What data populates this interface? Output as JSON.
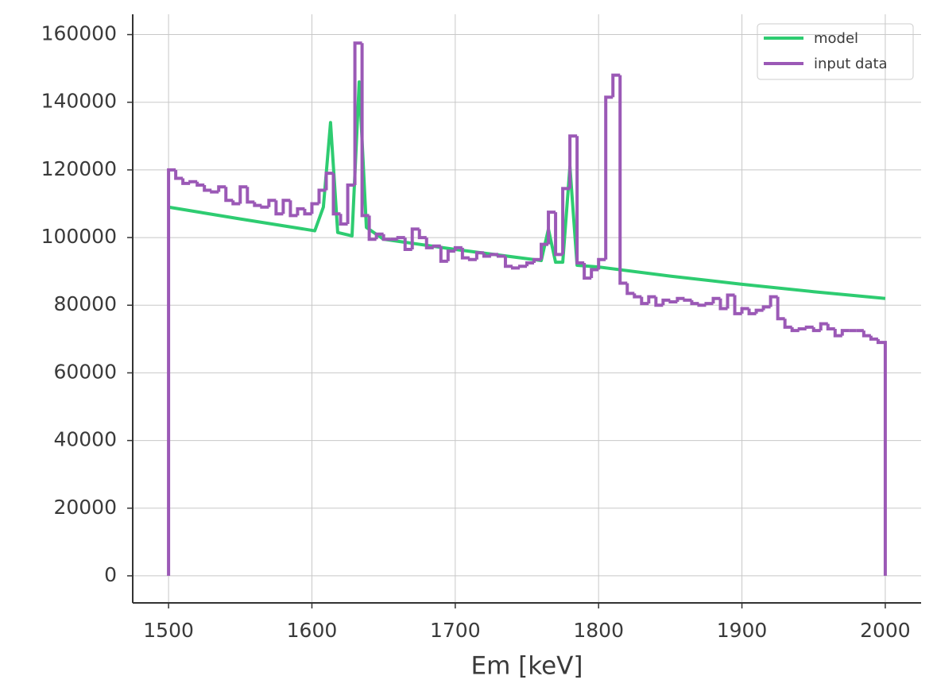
{
  "chart_data": {
    "type": "line",
    "xlabel": "Em [keV]",
    "xlim": [
      1475,
      2025
    ],
    "ylim": [
      -8000,
      166000
    ],
    "xticks": [
      1500,
      1600,
      1700,
      1800,
      1900,
      2000
    ],
    "yticks": [
      0,
      20000,
      40000,
      60000,
      80000,
      100000,
      120000,
      140000,
      160000
    ],
    "grid": true,
    "legend": "upper right",
    "series": [
      {
        "name": "model",
        "color": "#2ecc71",
        "x": [
          1500,
          1550,
          1602,
          1608,
          1613,
          1618,
          1628,
          1633,
          1638,
          1650,
          1700,
          1760,
          1765,
          1770,
          1775,
          1780,
          1785,
          1800,
          1850,
          1900,
          1950,
          2000
        ],
        "values": [
          109000,
          105500,
          102000,
          109000,
          134000,
          101500,
          100500,
          146000,
          103000,
          99500,
          96500,
          93200,
          102500,
          92700,
          92700,
          121000,
          91800,
          91300,
          88600,
          86200,
          84000,
          82000
        ]
      },
      {
        "name": "input data",
        "color": "#9b59b6",
        "drawstyle": "steps",
        "bins": [
          1500,
          1505,
          1510,
          1515,
          1520,
          1525,
          1530,
          1535,
          1540,
          1545,
          1550,
          1555,
          1560,
          1565,
          1570,
          1575,
          1580,
          1585,
          1590,
          1595,
          1600,
          1605,
          1610,
          1615,
          1620,
          1625,
          1630,
          1635,
          1640,
          1645,
          1650,
          1655,
          1660,
          1665,
          1670,
          1675,
          1680,
          1685,
          1690,
          1695,
          1700,
          1705,
          1710,
          1715,
          1720,
          1725,
          1730,
          1735,
          1740,
          1745,
          1750,
          1755,
          1760,
          1765,
          1770,
          1775,
          1780,
          1785,
          1790,
          1795,
          1800,
          1805,
          1810,
          1815,
          1820,
          1825,
          1830,
          1835,
          1840,
          1845,
          1850,
          1855,
          1860,
          1865,
          1870,
          1875,
          1880,
          1885,
          1890,
          1895,
          1900,
          1905,
          1910,
          1915,
          1920,
          1925,
          1930,
          1935,
          1940,
          1945,
          1950,
          1955,
          1960,
          1965,
          1970,
          1975,
          1980,
          1985,
          1990,
          1995,
          2000
        ],
        "values": [
          120000,
          117500,
          116000,
          116500,
          115500,
          114000,
          113500,
          115000,
          111000,
          110000,
          115000,
          110500,
          109500,
          109000,
          111000,
          107000,
          111000,
          106500,
          108500,
          107000,
          110000,
          114000,
          119000,
          107000,
          104000,
          115500,
          157500,
          106500,
          99500,
          101000,
          99500,
          99500,
          100000,
          96500,
          102500,
          100000,
          97000,
          97500,
          93000,
          96000,
          97000,
          94000,
          93500,
          95500,
          94500,
          95000,
          94500,
          91500,
          91000,
          91500,
          92500,
          93500,
          98000,
          107500,
          95000,
          114500,
          130000,
          92500,
          88000,
          90500,
          93500,
          141500,
          148000,
          86500,
          83500,
          82500,
          80500,
          82500,
          80000,
          81500,
          81000,
          82000,
          81500,
          80500,
          80000,
          80500,
          82000,
          79000,
          83000,
          77500,
          79000,
          77500,
          78500,
          79500,
          82500,
          76000,
          73500,
          72500,
          73000,
          73500,
          72500,
          74500,
          73000,
          71000,
          72500,
          72500,
          72500,
          71000,
          70000,
          69000
        ]
      }
    ]
  }
}
